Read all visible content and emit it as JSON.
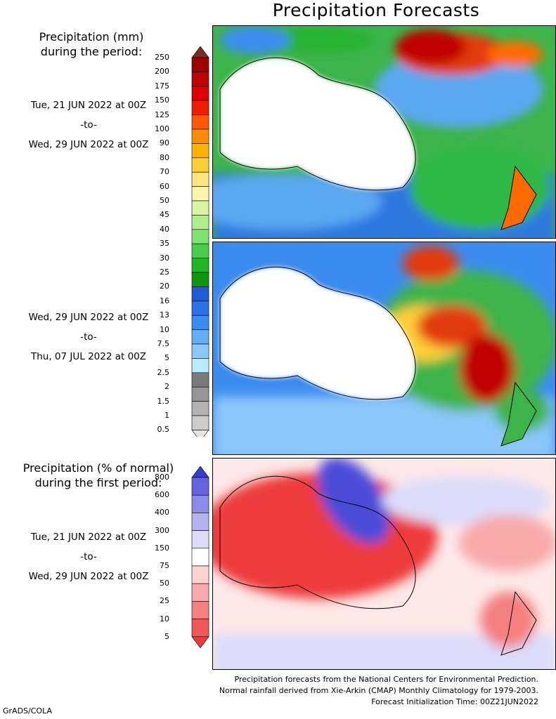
{
  "title": "Precipitation Forecasts",
  "sections": [
    {
      "title_line1": "Precipitation (mm)",
      "title_line2": "during the period:",
      "periods": [
        {
          "start": "Tue, 21 JUN 2022 at 00Z",
          "sep": "-to-",
          "end": "Wed, 29 JUN 2022 at 00Z"
        },
        {
          "start": "Wed, 29 JUN 2022 at 00Z",
          "sep": "-to-",
          "end": "Thu, 07 JUL 2022 at 00Z"
        }
      ],
      "legend_ticks": [
        "250",
        "200",
        "175",
        "150",
        "125",
        "100",
        "90",
        "80",
        "70",
        "60",
        "50",
        "45",
        "40",
        "35",
        "30",
        "25",
        "20",
        "16",
        "13",
        "10",
        "7.5",
        "5",
        "2.5",
        "2",
        "1.5",
        "1",
        "0.5"
      ],
      "legend_colors": [
        "#7a2d22",
        "#9c0000",
        "#bf0000",
        "#dd0000",
        "#f01e00",
        "#ff5a00",
        "#ff8c00",
        "#ffb300",
        "#ffcf3a",
        "#ffe680",
        "#fff5b0",
        "#d8f5a0",
        "#b0ee88",
        "#80e070",
        "#4ccc4c",
        "#22b422",
        "#0f960f",
        "#1f5ad8",
        "#2b72e6",
        "#3c8cf0",
        "#64aef5",
        "#8cc8fa",
        "#b8ecff",
        "#7a7a7a",
        "#969696",
        "#b2b2b2",
        "#cccccc",
        "#e4e4e4"
      ]
    },
    {
      "title_line1": "Precipitation (% of normal)",
      "title_line2": "during the first period:",
      "periods": [
        {
          "start": "Tue, 21 JUN 2022 at 00Z",
          "sep": "-to-",
          "end": "Wed, 29 JUN 2022 at 00Z"
        }
      ],
      "legend_ticks": [
        "800",
        "600",
        "400",
        "300",
        "150",
        "75",
        "50",
        "25",
        "10",
        "5"
      ],
      "legend_colors": [
        "#3a3ad0",
        "#6464e0",
        "#8c8ce8",
        "#b4b4f0",
        "#dcdcfa",
        "#ffffff",
        "#fcd2d2",
        "#f8aaaa",
        "#f48080",
        "#f05858",
        "#ee3a3a"
      ]
    }
  ],
  "footer": {
    "line1": "Precipitation forecasts from the National Centers for Environmental Prediction.",
    "line2": "Normal rainfall derived from Xie-Arkin (CMAP) Monthly Climatology for 1979-2003.",
    "line3": "Forecast Initialization Time: 00Z21JUN2022"
  },
  "credit": "GrADS/COLA"
}
